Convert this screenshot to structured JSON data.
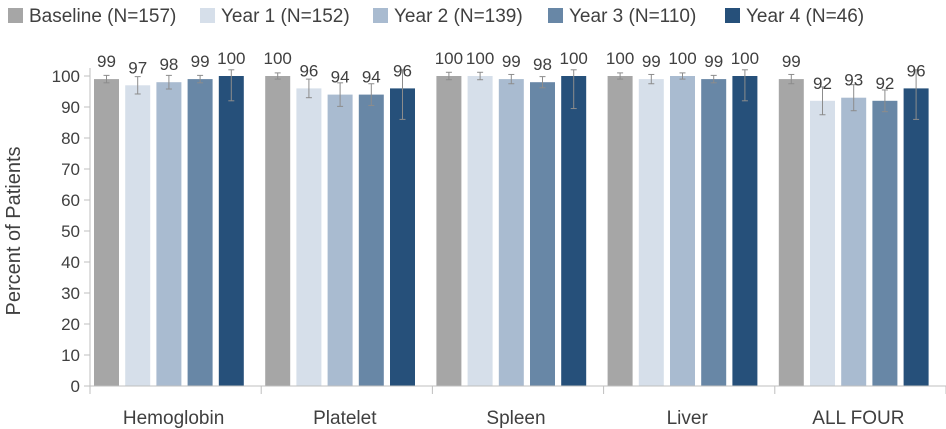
{
  "chart_data": {
    "type": "bar",
    "title": "",
    "xlabel": "",
    "ylabel": "Percent of Patients",
    "ylim": [
      0,
      100
    ],
    "yticks": [
      0,
      10,
      20,
      30,
      40,
      50,
      60,
      70,
      80,
      90,
      100
    ],
    "legend_position": "top",
    "grid": false,
    "categories": [
      "Hemoglobin",
      "Platelet",
      "Spleen",
      "Liver",
      "ALL FOUR"
    ],
    "series": [
      {
        "name": "Baseline (N=157)",
        "color": "#a6a6a6",
        "values": [
          99,
          100,
          100,
          100,
          99
        ],
        "labels": [
          "99",
          "100",
          "100",
          "100",
          "99"
        ],
        "err": [
          1.2,
          1,
          1.2,
          1,
          1.5
        ]
      },
      {
        "name": "Year 1 (N=152)",
        "color": "#d6dfea",
        "values": [
          97,
          96,
          100,
          99,
          92
        ],
        "labels": [
          "97",
          "96",
          "100",
          "99",
          "92"
        ],
        "err": [
          2.8,
          3,
          1.2,
          1.5,
          4.5
        ]
      },
      {
        "name": "Year 2 (N=139)",
        "color": "#a9bbd0",
        "values": [
          98,
          94,
          99,
          100,
          93
        ],
        "labels": [
          "98",
          "94",
          "99",
          "100",
          "93"
        ],
        "err": [
          2.2,
          3.8,
          1.5,
          1,
          4.2
        ]
      },
      {
        "name": "Year 3 (N=110)",
        "color": "#6887a6",
        "values": [
          99,
          94,
          98,
          99,
          92
        ],
        "labels": [
          "99",
          "94",
          "98",
          "99",
          "92"
        ],
        "err": [
          1.2,
          3.5,
          1.8,
          1.2,
          3.5
        ]
      },
      {
        "name": "Year 4 (N=46)",
        "color": "#26507a",
        "values": [
          100,
          96,
          100,
          100,
          96
        ],
        "labels": [
          "100",
          "96",
          "100",
          "100",
          "96"
        ],
        "err": [
          8,
          10,
          10.5,
          8,
          10
        ]
      }
    ]
  }
}
